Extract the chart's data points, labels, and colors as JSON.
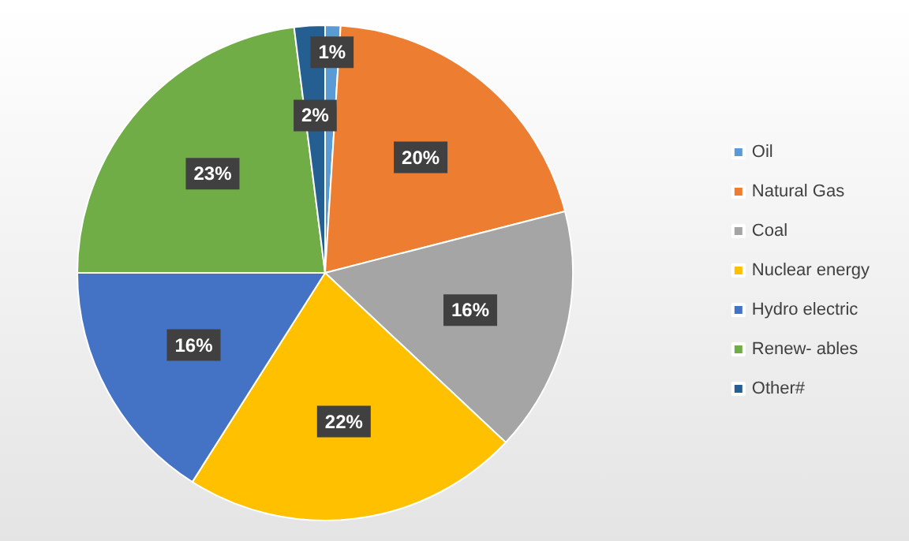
{
  "chart_data": {
    "type": "pie",
    "categories": [
      "Oil",
      "Natural Gas",
      "Coal",
      "Nuclear energy",
      "Hydro electric",
      "Renew- ables",
      "Other#"
    ],
    "values": [
      1,
      20,
      16,
      22,
      16,
      23,
      2
    ],
    "value_labels": [
      "1%",
      "20%",
      "16%",
      "22%",
      "16%",
      "23%",
      "2%"
    ],
    "colors": [
      "#5b9bd5",
      "#ed7d31",
      "#a5a5a5",
      "#ffc000",
      "#4472c4",
      "#70ad47",
      "#255e91"
    ],
    "legend": "right"
  }
}
